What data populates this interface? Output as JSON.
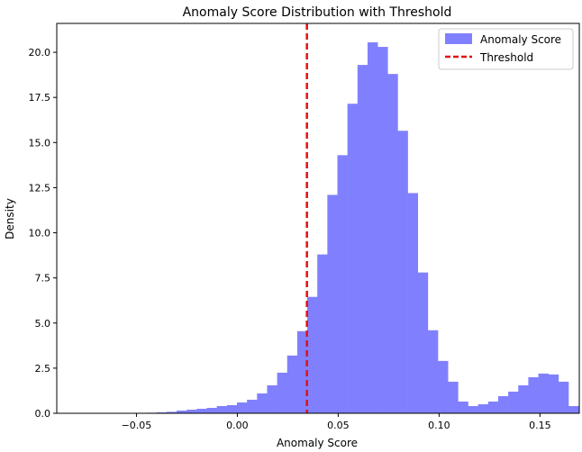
{
  "chart_data": {
    "type": "bar",
    "title": "Anomaly Score Distribution with Threshold",
    "xlabel": "Anomaly Score",
    "ylabel": "Density",
    "xlim": [
      -0.0895,
      0.1695
    ],
    "ylim": [
      0,
      21.6
    ],
    "x_ticks": [
      {
        "value": -0.05,
        "label": "−0.05"
      },
      {
        "value": 0.0,
        "label": "0.00"
      },
      {
        "value": 0.05,
        "label": "0.05"
      },
      {
        "value": 0.1,
        "label": "0.10"
      },
      {
        "value": 0.15,
        "label": "0.15"
      }
    ],
    "y_ticks": [
      {
        "value": 0.0,
        "label": "0.0"
      },
      {
        "value": 2.5,
        "label": "2.5"
      },
      {
        "value": 5.0,
        "label": "5.0"
      },
      {
        "value": 7.5,
        "label": "7.5"
      },
      {
        "value": 10.0,
        "label": "10.0"
      },
      {
        "value": 12.5,
        "label": "12.5"
      },
      {
        "value": 15.0,
        "label": "15.0"
      },
      {
        "value": 17.5,
        "label": "17.5"
      },
      {
        "value": 20.0,
        "label": "20.0"
      }
    ],
    "bin_start": -0.05,
    "bin_width": 0.00498,
    "values": [
      0.02,
      0.03,
      0.05,
      0.08,
      0.15,
      0.2,
      0.25,
      0.3,
      0.4,
      0.45,
      0.6,
      0.75,
      1.1,
      1.55,
      2.25,
      3.2,
      4.55,
      6.45,
      8.8,
      12.1,
      14.3,
      17.15,
      19.3,
      20.55,
      20.3,
      18.8,
      15.65,
      12.2,
      7.8,
      4.6,
      2.9,
      1.75,
      0.65,
      0.4,
      0.5,
      0.65,
      0.95,
      1.2,
      1.55,
      2.0,
      2.2,
      2.15,
      1.75,
      0.4
    ],
    "threshold": {
      "name": "Threshold",
      "value": 0.0345,
      "color": "#e51010"
    },
    "series_name": "Anomaly Score",
    "bar_color": "#8080ff",
    "legend": {
      "position": "top-right",
      "entries": [
        {
          "label": "Anomaly Score"
        },
        {
          "label": "Threshold"
        }
      ]
    }
  }
}
